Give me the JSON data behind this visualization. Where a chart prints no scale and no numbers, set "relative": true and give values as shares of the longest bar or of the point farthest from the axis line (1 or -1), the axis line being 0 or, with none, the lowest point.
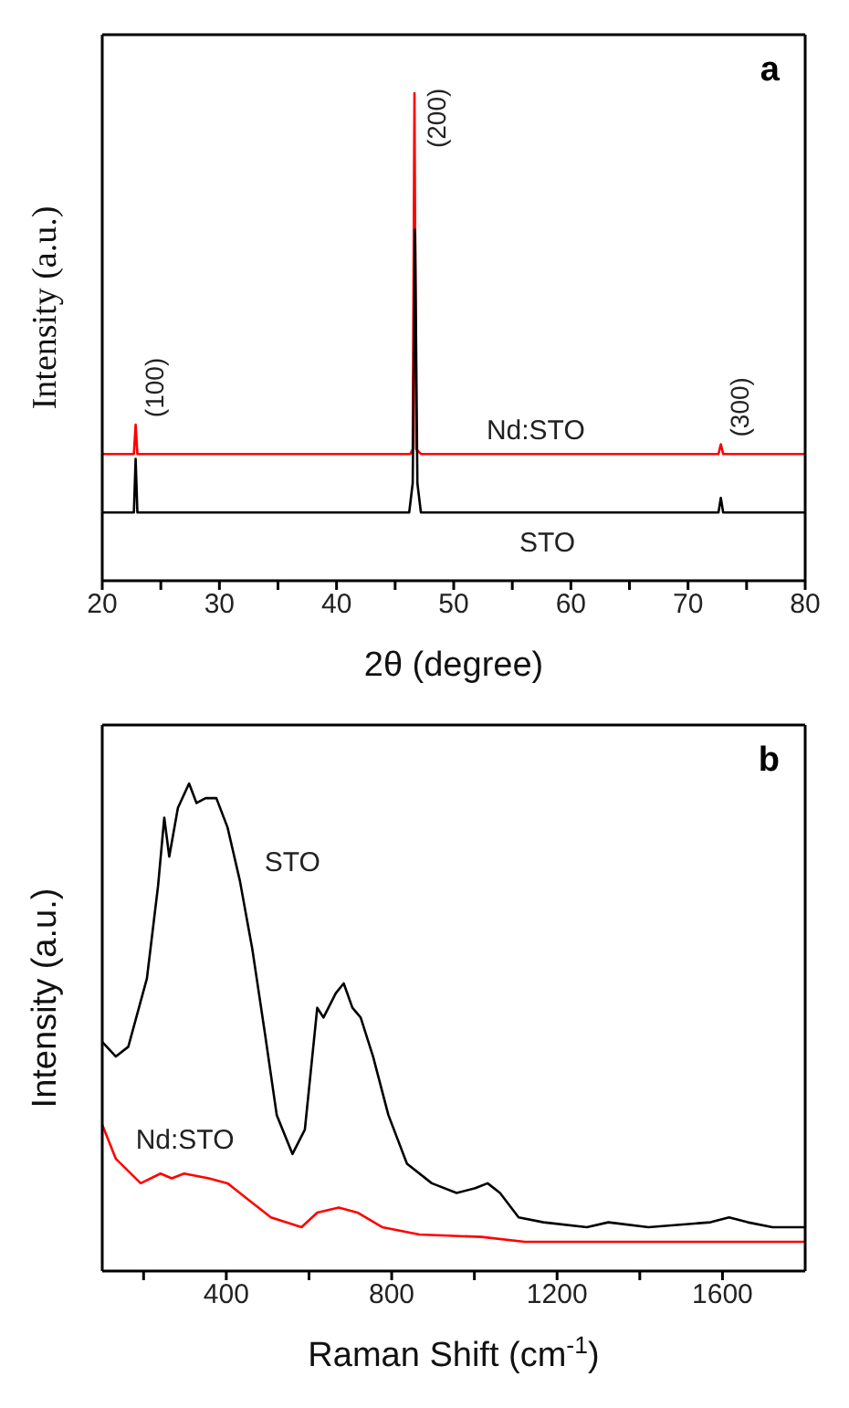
{
  "chart_data": [
    {
      "type": "line",
      "xlabel": "2θ (degree)",
      "ylabel": "Intensity (a.u.)",
      "relative": true,
      "xlim": [
        20,
        80
      ],
      "xticks": [
        20,
        {
          "value": 25,
          "label": null
        },
        30,
        {
          "value": 35,
          "label": null
        },
        40,
        {
          "value": 45,
          "label": null
        },
        50,
        {
          "value": 55,
          "label": null
        },
        60,
        {
          "value": 65,
          "label": null
        },
        70,
        {
          "value": 75,
          "label": null
        },
        80
      ],
      "annotations": [
        "a",
        {
          "text": "(100)",
          "x": 22.85,
          "y": 0.32
        },
        {
          "text": "(200)",
          "x": 46.65,
          "y": 1.0
        },
        {
          "text": "(300)",
          "x": 72.8,
          "y": 0.28
        }
      ],
      "series": [
        {
          "name": "Nd:STO",
          "color": "#ff0000",
          "x": [
            20,
            22.7,
            22.85,
            23.0,
            46.3,
            46.5,
            46.65,
            46.8,
            47.2,
            72.6,
            72.8,
            73.0,
            80
          ],
          "values": [
            0.26,
            0.26,
            0.32,
            0.26,
            0.26,
            0.27,
            1.0,
            0.27,
            0.26,
            0.26,
            0.28,
            0.26,
            0.26
          ]
        },
        {
          "name": "STO",
          "color": "#000000",
          "x": [
            20,
            22.7,
            22.85,
            23.0,
            46.2,
            46.5,
            46.7,
            46.9,
            47.2,
            72.6,
            72.8,
            73.0,
            80
          ],
          "values": [
            0.14,
            0.14,
            0.25,
            0.14,
            0.14,
            0.2,
            0.72,
            0.2,
            0.14,
            0.14,
            0.17,
            0.14,
            0.14
          ]
        }
      ]
    },
    {
      "type": "line",
      "xlabel": "Raman Shift (cm$^{-1}$)",
      "ylabel": "Intensity (a.u.)",
      "relative": true,
      "xlim": [
        100,
        1800
      ],
      "xticks": [
        {
          "value": 200,
          "label": null
        },
        400,
        {
          "value": 600,
          "label": null
        },
        800,
        {
          "value": 1000,
          "label": null
        },
        1200,
        {
          "value": 1400,
          "label": null
        },
        1600
      ],
      "annotations": [
        "b"
      ],
      "series": [
        {
          "name": "STO",
          "color": "#000000",
          "x": [
            100,
            133,
            163,
            208,
            235,
            250,
            262,
            283,
            310,
            328,
            350,
            376,
            403,
            433,
            463,
            493,
            522,
            560,
            590,
            620,
            635,
            665,
            684,
            705,
            725,
            755,
            792,
            837,
            897,
            957,
            1002,
            1032,
            1062,
            1107,
            1167,
            1272,
            1324,
            1421,
            1571,
            1616,
            1661,
            1721,
            1800
          ],
          "values": [
            0.47,
            0.44,
            0.46,
            0.6,
            0.79,
            0.93,
            0.85,
            0.95,
            1.0,
            0.96,
            0.97,
            0.97,
            0.91,
            0.8,
            0.66,
            0.49,
            0.32,
            0.24,
            0.29,
            0.54,
            0.52,
            0.57,
            0.59,
            0.54,
            0.52,
            0.44,
            0.32,
            0.22,
            0.18,
            0.16,
            0.17,
            0.18,
            0.16,
            0.11,
            0.1,
            0.09,
            0.1,
            0.09,
            0.1,
            0.11,
            0.1,
            0.09,
            0.09
          ]
        },
        {
          "name": "Nd:STO",
          "color": "#ff0000",
          "x": [
            100,
            133,
            193,
            241,
            268,
            298,
            358,
            403,
            448,
            508,
            582,
            620,
            672,
            717,
            777,
            867,
            1017,
            1122,
            1800
          ],
          "values": [
            0.3,
            0.23,
            0.18,
            0.2,
            0.19,
            0.2,
            0.19,
            0.18,
            0.15,
            0.11,
            0.09,
            0.12,
            0.13,
            0.12,
            0.09,
            0.075,
            0.07,
            0.06,
            0.06
          ]
        }
      ]
    }
  ]
}
